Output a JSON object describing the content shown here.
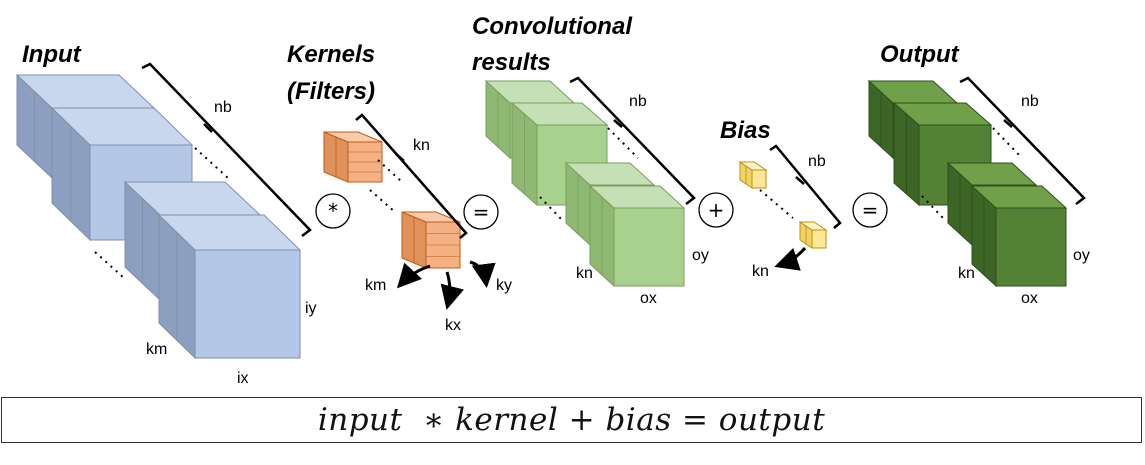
{
  "input": {
    "title": "Input",
    "labels": {
      "batch": "nb",
      "channels": "km",
      "height": "iy",
      "width": "ix"
    },
    "colors": {
      "front": "#b4c7e7",
      "top": "#c9d7ee",
      "side": "#8d9fc0",
      "edge": "#7f8fa8"
    }
  },
  "kernels": {
    "title_line1": "Kernels",
    "title_line2": "(Filters)",
    "labels": {
      "count": "kn",
      "channels": "km",
      "height": "ky",
      "width": "kx"
    },
    "colors": {
      "front": "#f4b183",
      "top": "#f8cbad",
      "side": "#e0925c",
      "edge": "#c55a11"
    }
  },
  "conv": {
    "title_line1": "Convolutional",
    "title_line2": "results",
    "labels": {
      "batch": "nb",
      "channels": "kn",
      "height": "oy",
      "width": "ox"
    },
    "colors": {
      "front": "#a9d18e",
      "top": "#c5e0b4",
      "side": "#8fb873",
      "edge": "#7a9e60"
    }
  },
  "bias": {
    "title": "Bias",
    "labels": {
      "batch": "nb",
      "channels": "kn"
    },
    "colors": {
      "front": "#ffe699",
      "top": "#fff2cc",
      "side": "#f0d26b",
      "edge": "#bf9000"
    }
  },
  "output": {
    "title": "Output",
    "labels": {
      "batch": "nb",
      "channels": "kn",
      "height": "oy",
      "width": "ox"
    },
    "colors": {
      "front": "#548235",
      "top": "#70a04a",
      "side": "#3d6626",
      "edge": "#2e4f1c"
    }
  },
  "operators": {
    "convolve": "*",
    "equals1": "=",
    "plus": "+",
    "equals2": "="
  },
  "equation": "input  ∗ kernel + bias = output"
}
